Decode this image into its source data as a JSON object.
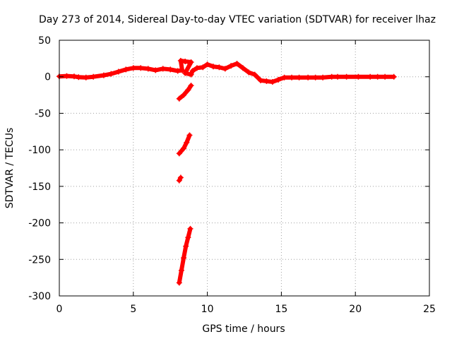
{
  "chart_data": {
    "type": "scatter",
    "title": "Day 273 of 2014, Sidereal Day-to-day VTEC variation (SDTVAR) for receiver lhaz",
    "xlabel": "GPS time / hours",
    "ylabel": "SDTVAR / TECUs",
    "xlim": [
      0,
      25
    ],
    "ylim": [
      -300,
      50
    ],
    "xticks": [
      0,
      5,
      10,
      15,
      20,
      25
    ],
    "yticks": [
      -300,
      -250,
      -200,
      -150,
      -100,
      -50,
      0,
      50
    ],
    "grid": true,
    "marker_color": "#ff0000",
    "series": [
      {
        "points": [
          [
            0.0,
            0.5
          ],
          [
            0.5,
            1
          ],
          [
            1.0,
            0.5
          ],
          [
            1.3,
            -0.5
          ],
          [
            1.8,
            -1
          ],
          [
            2.3,
            0
          ],
          [
            3.0,
            2
          ],
          [
            3.5,
            4
          ],
          [
            4.0,
            7
          ],
          [
            4.5,
            10
          ],
          [
            5.0,
            12
          ],
          [
            5.5,
            12
          ],
          [
            6.0,
            11
          ],
          [
            6.5,
            9
          ],
          [
            7.0,
            11
          ],
          [
            7.5,
            10
          ],
          [
            8.0,
            8
          ],
          [
            8.3,
            9
          ],
          [
            8.2,
            22
          ],
          [
            8.5,
            21
          ],
          [
            8.9,
            20
          ],
          [
            8.5,
            5
          ],
          [
            8.9,
            3
          ],
          [
            9.0,
            8
          ],
          [
            9.3,
            12
          ],
          [
            9.7,
            13
          ],
          [
            10.0,
            17
          ],
          [
            10.4,
            14
          ],
          [
            10.8,
            13
          ],
          [
            11.2,
            11
          ],
          [
            11.6,
            15
          ],
          [
            12.0,
            18
          ],
          [
            12.4,
            12
          ],
          [
            12.8,
            6
          ],
          [
            13.2,
            3
          ],
          [
            13.6,
            -5
          ],
          [
            14.0,
            -6
          ],
          [
            14.4,
            -7
          ],
          [
            14.8,
            -4
          ],
          [
            15.2,
            -1
          ],
          [
            15.7,
            -1
          ],
          [
            16.2,
            -1
          ],
          [
            16.8,
            -1
          ],
          [
            17.3,
            -1
          ],
          [
            17.8,
            -1
          ],
          [
            18.4,
            0
          ],
          [
            18.8,
            0
          ],
          [
            19.4,
            0
          ],
          [
            20.2,
            0
          ],
          [
            21.0,
            0
          ],
          [
            21.5,
            0
          ],
          [
            22.0,
            0
          ],
          [
            22.6,
            0
          ],
          [
            8.1,
            -30
          ],
          [
            8.4,
            -25
          ],
          [
            8.7,
            -18
          ],
          [
            8.9,
            -12
          ],
          [
            8.1,
            -105
          ],
          [
            8.4,
            -98
          ],
          [
            8.6,
            -90
          ],
          [
            8.8,
            -80
          ],
          [
            8.1,
            -142
          ],
          [
            8.2,
            -138
          ],
          [
            8.1,
            -282
          ],
          [
            8.25,
            -265
          ],
          [
            8.4,
            -248
          ],
          [
            8.55,
            -232
          ],
          [
            8.7,
            -220
          ],
          [
            8.85,
            -208
          ]
        ]
      }
    ]
  }
}
